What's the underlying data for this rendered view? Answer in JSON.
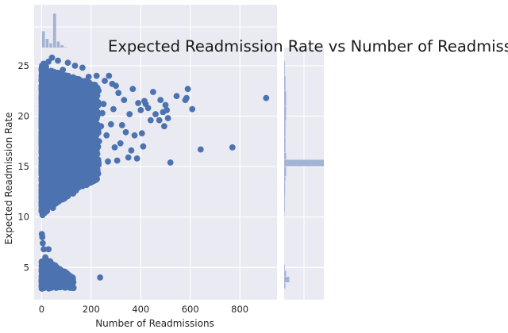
{
  "chart_data": {
    "type": "scatter",
    "title": "Expected Readmission Rate vs Number of Readmissions",
    "xlabel": "Number of Readmissions",
    "ylabel": "Expected Readmission Rate",
    "xlim": [
      -30,
      950
    ],
    "ylim": [
      1.8,
      26.8
    ],
    "xticks": [
      0,
      200,
      400,
      600,
      800
    ],
    "yticks": [
      5,
      10,
      15,
      20,
      25
    ],
    "grid": true,
    "background": "#eaeaf2",
    "point_color": "#4c72b0",
    "hist_color": "#a3b3d4",
    "series": [
      {
        "values": [
          [
            906,
            21.8
          ],
          [
            770,
            16.9
          ],
          [
            642,
            16.7
          ],
          [
            608,
            20.7
          ],
          [
            590,
            22.7
          ],
          [
            585,
            21.8
          ],
          [
            580,
            21.6
          ],
          [
            545,
            22.0
          ],
          [
            520,
            15.4
          ],
          [
            510,
            19.8
          ],
          [
            505,
            20.6
          ],
          [
            500,
            21.1
          ],
          [
            495,
            19.0
          ],
          [
            490,
            20.4
          ],
          [
            480,
            21.6
          ],
          [
            475,
            19.6
          ],
          [
            460,
            20.2
          ],
          [
            450,
            22.4
          ],
          [
            440,
            19.6
          ],
          [
            430,
            20.8
          ],
          [
            420,
            21.2
          ],
          [
            415,
            21.5
          ],
          [
            410,
            17.0
          ],
          [
            405,
            18.3
          ],
          [
            400,
            20.6
          ],
          [
            390,
            21.3
          ],
          [
            385,
            15.8
          ],
          [
            375,
            18.1
          ],
          [
            368,
            22.7
          ],
          [
            362,
            16.6
          ],
          [
            355,
            20.2
          ],
          [
            350,
            15.9
          ],
          [
            340,
            18.4
          ],
          [
            333,
            21.6
          ],
          [
            325,
            19.1
          ],
          [
            318,
            17.3
          ],
          [
            310,
            22.3
          ],
          [
            305,
            15.6
          ],
          [
            300,
            23.0
          ],
          [
            295,
            16.9
          ],
          [
            290,
            20.7
          ],
          [
            285,
            23.2
          ],
          [
            280,
            19.2
          ],
          [
            272,
            24.0
          ],
          [
            268,
            15.5
          ],
          [
            262,
            18.1
          ],
          [
            255,
            23.5
          ],
          [
            250,
            21.2
          ],
          [
            245,
            20.3
          ],
          [
            240,
            19.0
          ],
          [
            236,
            4.0
          ],
          [
            232,
            17.5
          ],
          [
            228,
            22.6
          ],
          [
            222,
            24.0
          ],
          [
            218,
            16.7
          ],
          [
            212,
            21.3
          ],
          [
            205,
            22.9
          ],
          [
            198,
            17.8
          ],
          [
            190,
            23.9
          ],
          [
            184,
            15.9
          ],
          [
            178,
            22.1
          ],
          [
            172,
            18.0
          ],
          [
            165,
            24.8
          ],
          [
            160,
            19.4
          ],
          [
            155,
            15.6
          ],
          [
            150,
            23.2
          ],
          [
            145,
            14.6
          ],
          [
            140,
            20.2
          ],
          [
            135,
            25.0
          ],
          [
            130,
            16.4
          ],
          [
            125,
            21.1
          ],
          [
            120,
            14.2
          ],
          [
            116,
            23.6
          ],
          [
            110,
            18.6
          ],
          [
            106,
            25.3
          ],
          [
            100,
            13.8
          ],
          [
            96,
            22.0
          ],
          [
            90,
            12.9
          ],
          [
            86,
            24.6
          ],
          [
            80,
            13.1
          ],
          [
            76,
            19.6
          ],
          [
            70,
            12.6
          ],
          [
            66,
            25.5
          ],
          [
            62,
            11.9
          ],
          [
            58,
            23.1
          ],
          [
            54,
            11.3
          ],
          [
            50,
            20.5
          ],
          [
            46,
            10.9
          ],
          [
            42,
            25.8
          ],
          [
            38,
            11.1
          ],
          [
            32,
            12.0
          ],
          [
            28,
            25.4
          ],
          [
            22,
            10.6
          ],
          [
            18,
            24.9
          ],
          [
            12,
            10.4
          ],
          [
            8,
            25.2
          ],
          [
            4,
            10.2
          ],
          [
            2,
            25.0
          ],
          [
            1,
            8.3
          ],
          [
            3,
            8.0
          ],
          [
            5,
            7.4
          ],
          [
            9,
            6.8
          ],
          [
            15,
            6.0
          ],
          [
            22,
            5.7
          ],
          [
            28,
            6.8
          ],
          [
            35,
            5.6
          ],
          [
            45,
            5.3
          ],
          [
            55,
            5.2
          ],
          [
            62,
            5.0
          ],
          [
            75,
            4.8
          ],
          [
            90,
            4.6
          ],
          [
            105,
            4.2
          ],
          [
            118,
            4.1
          ],
          [
            6,
            3.4
          ],
          [
            14,
            3.1
          ],
          [
            25,
            3.6
          ],
          [
            40,
            3.8
          ],
          [
            60,
            4.4
          ],
          [
            80,
            4.0
          ],
          [
            0,
            3.2
          ],
          [
            10,
            4.6
          ],
          [
            20,
            5.0
          ],
          [
            30,
            4.3
          ],
          [
            48,
            3.5
          ]
        ]
      }
    ],
    "dense_regions": [
      {
        "x_range": [
          0,
          230
        ],
        "y_range": [
          10.5,
          24.8
        ],
        "count": 2600
      },
      {
        "x_range": [
          0,
          130
        ],
        "y_range": [
          2.9,
          5.6
        ],
        "count": 260
      }
    ],
    "marginal_x_hist": {
      "bin_edges": [
        0,
        15,
        30,
        45,
        60,
        75,
        90,
        105,
        120,
        150,
        200,
        300,
        950
      ],
      "values": [
        0.45,
        0.26,
        0.15,
        0.9,
        0.19,
        0.1,
        0.05,
        0.03,
        0.02,
        0.01,
        0.01,
        0.005
      ]
    },
    "marginal_y_hist": {
      "bin_edges": [
        2.9,
        3.5,
        4.1,
        4.7,
        5.3,
        10.0,
        10.5,
        12.0,
        13.5,
        14.0,
        15.0,
        15.7,
        16.4,
        18.0,
        19.5,
        21.0,
        22.5,
        24.0,
        25.5
      ],
      "values": [
        0.02,
        0.08,
        0.03,
        0.01,
        0.0,
        0.005,
        0.01,
        0.015,
        0.02,
        0.03,
        0.62,
        0.03,
        0.02,
        0.02,
        0.03,
        0.03,
        0.02,
        0.01
      ]
    }
  }
}
